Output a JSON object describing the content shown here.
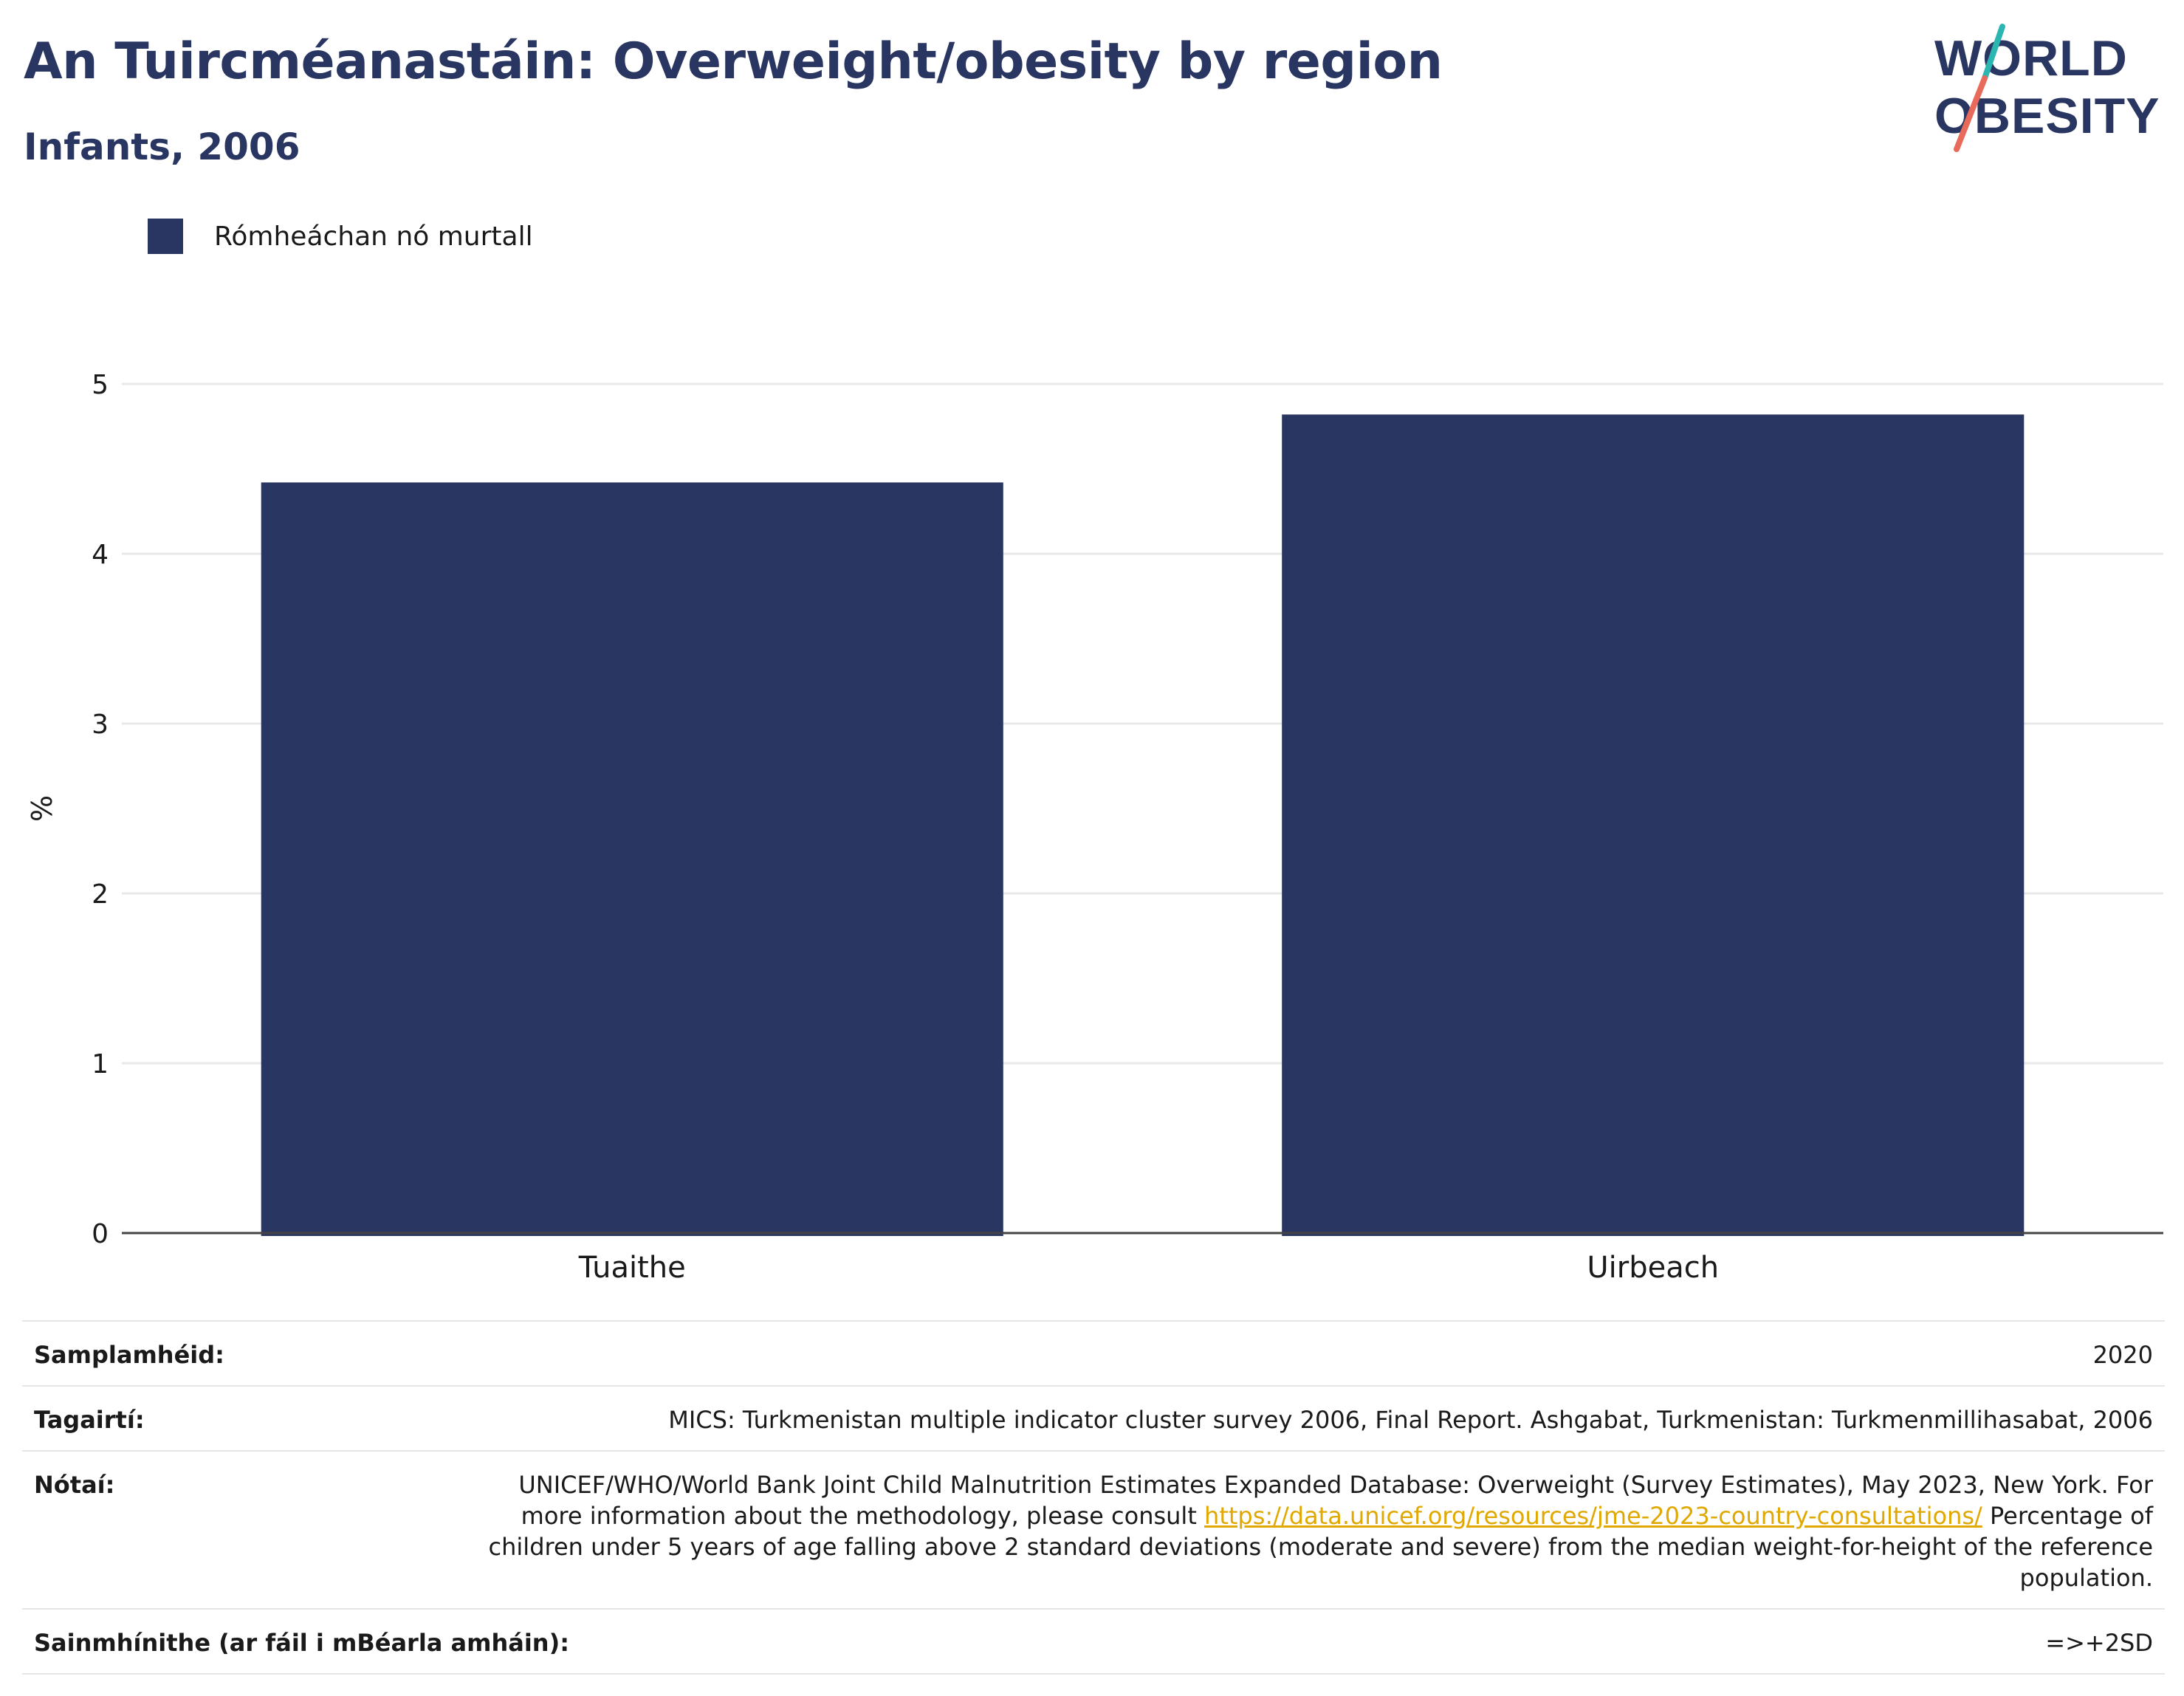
{
  "header": {
    "title": "An Tuircméanastáin: Overweight/obesity by region",
    "subtitle": "Infants, 2006"
  },
  "logo": {
    "line1": "WORLD",
    "line2": "OBESITY",
    "accent_teal": "#2bb6b2",
    "accent_coral": "#e86a5a"
  },
  "legend": {
    "label": "Rómheáchan nó murtall",
    "color": "#2a3662"
  },
  "chart_data": {
    "type": "bar",
    "categories": [
      "Tuaithe",
      "Uirbeach"
    ],
    "series": [
      {
        "name": "Rómheáchan nó murtall",
        "values": [
          4.42,
          4.82
        ],
        "color": "#2a3662"
      }
    ],
    "title": "An Tuircméanastáin: Overweight/obesity by region",
    "subtitle": "Infants, 2006",
    "xlabel": "",
    "ylabel": "%",
    "ylim": [
      0,
      5
    ],
    "yticks": [
      0,
      1,
      2,
      3,
      4,
      5
    ],
    "grid": true,
    "legend_position": "top-left"
  },
  "meta": {
    "sample_label": "Samplamhéid:",
    "sample_value": "2020",
    "refs_label": "Tagairtí:",
    "refs_value": "MICS: Turkmenistan multiple indicator cluster survey 2006, Final Report. Ashgabat, Turkmenistan: Turkmenmillihasabat, 2006",
    "notes_label": "Nótaí:",
    "notes_text_1": "UNICEF/WHO/World Bank Joint Child Malnutrition Estimates Expanded Database: Overweight (Survey Estimates), May 2023, New York. For more information about the methodology, please consult",
    "notes_link": "https://data.unicef.org/resources/jme-2023-country-consultations/",
    "notes_text_2": "Percentage of children under 5 years of age falling above 2 standard deviations (moderate and severe) from the median weight-for-height of the reference population.",
    "defs_label": "Sainmhínithe (ar fáil i mBéarla amháin):",
    "defs_value": "=>+2SD"
  }
}
